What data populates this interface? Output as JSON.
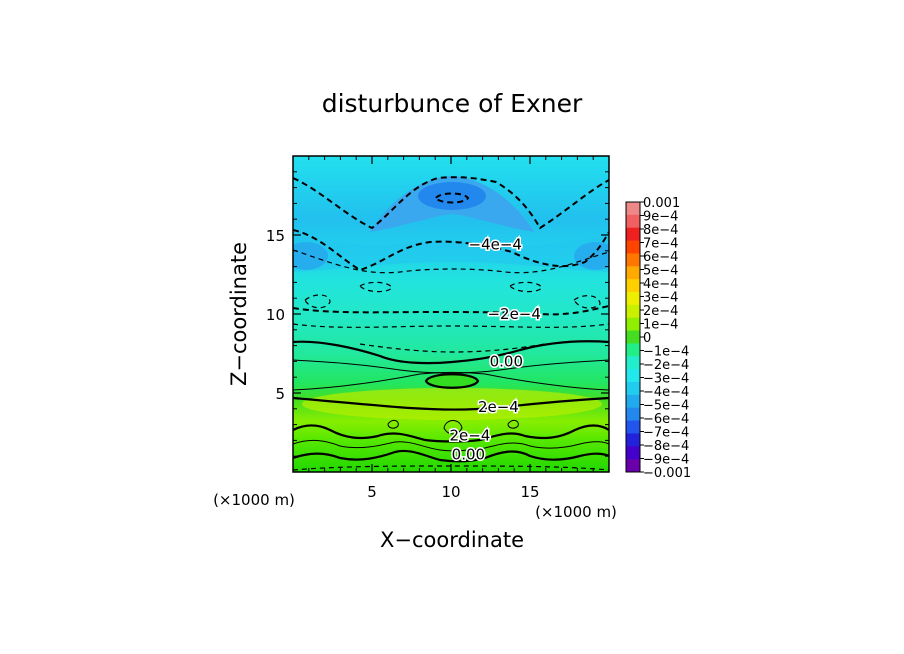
{
  "chart_data": {
    "type": "heatmap",
    "title": "disturbunce of Exner",
    "xlabel": "X−coordinate",
    "ylabel": "Z−coordinate",
    "x_units_label": "(×1000 m)",
    "z_units_label": "(×1000 m)",
    "xlim": [
      0,
      20
    ],
    "ylim": [
      0,
      20
    ],
    "x_ticks": [
      5,
      10,
      15
    ],
    "y_ticks": [
      5,
      10,
      15
    ],
    "x_ticklabels": [
      "5",
      "10",
      "15"
    ],
    "y_ticklabels": [
      "5",
      "10",
      "15"
    ],
    "z_range": [
      -0.001,
      0.001
    ],
    "colorbar_labels": [
      "0.001",
      "9e−4",
      "8e−4",
      "7e−4",
      "6e−4",
      "5e−4",
      "4e−4",
      "3e−4",
      "2e−4",
      "1e−4",
      "0",
      "−1e−4",
      "−2e−4",
      "−3e−4",
      "−4e−4",
      "−5e−4",
      "−6e−4",
      "−7e−4",
      "−8e−4",
      "−9e−4",
      "−0.001"
    ],
    "colorbar_colors": [
      "#ee8888",
      "#f06060",
      "#ee2020",
      "#ff4400",
      "#ff7700",
      "#ffaa00",
      "#ffd000",
      "#eeee00",
      "#c8f000",
      "#90ee00",
      "#44dd22",
      "#22ee88",
      "#22eecc",
      "#22e8ee",
      "#22ccee",
      "#22aaee",
      "#2288ee",
      "#2255ee",
      "#2222dd",
      "#4400cc",
      "#6a00aa"
    ],
    "contour_labels": [
      {
        "text": "−4e−4",
        "x": 12.8,
        "z": 14.4
      },
      {
        "text": "−2e−4",
        "x": 14.0,
        "z": 10.0
      },
      {
        "text": "0.00",
        "x": 13.5,
        "z": 7.0
      },
      {
        "text": "2e−4",
        "x": 13.0,
        "z": 4.1
      },
      {
        "text": "2e−4",
        "x": 11.2,
        "z": 2.3
      },
      {
        "text": "0.00",
        "x": 11.1,
        "z": 1.1
      }
    ]
  }
}
